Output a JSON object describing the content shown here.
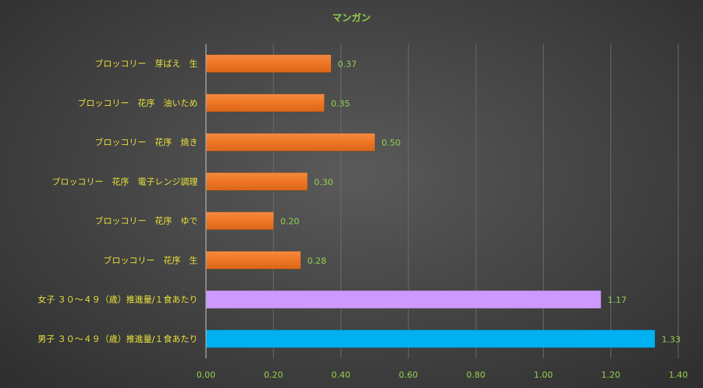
{
  "chart_data": {
    "type": "bar",
    "orientation": "horizontal",
    "title": "マンガン",
    "xlabel": "",
    "ylabel": "",
    "xlim": [
      0,
      1.4
    ],
    "xticks": [
      "0.00",
      "0.20",
      "0.40",
      "0.60",
      "0.80",
      "1.00",
      "1.20",
      "1.40"
    ],
    "grid": true,
    "legend": "none",
    "categories": [
      "ブロッコリー　芽ばえ　生",
      "ブロッコリー　花序　油いため",
      "ブロッコリー　花序　焼き",
      "ブロッコリー　花序　電子レンジ調理",
      "ブロッコリー　花序　ゆで",
      "ブロッコリー　花序　生",
      "女子 ３０～４９（歳）推進量/１食あたり",
      "男子 ３０～４９（歳）推進量/１食あたり"
    ],
    "values": [
      0.37,
      0.35,
      0.5,
      0.3,
      0.2,
      0.28,
      1.17,
      1.33
    ],
    "value_labels": [
      "0.37",
      "0.35",
      "0.50",
      "0.30",
      "0.20",
      "0.28",
      "1.17",
      "1.33"
    ],
    "bar_colors": [
      "#f07a2a",
      "#f07a2a",
      "#f07a2a",
      "#f07a2a",
      "#f07a2a",
      "#f07a2a",
      "#cc99ff",
      "#00b0f0"
    ]
  },
  "colors": {
    "title": "#92d050",
    "category_label": "#e8e13a",
    "tick_label": "#92d050",
    "data_label": "#92d050",
    "gridline": "#6e6e6e"
  }
}
